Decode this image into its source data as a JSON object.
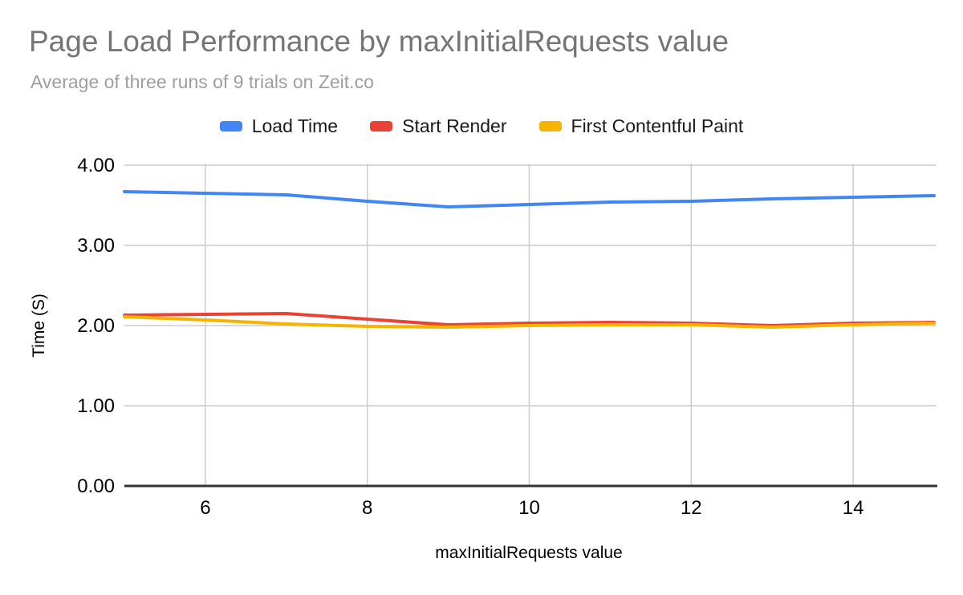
{
  "chart": {
    "title": "Page Load Performance by maxInitialRequests value",
    "subtitle": "Average of three runs of 9 trials on Zeit.co"
  },
  "chart_data": {
    "type": "line",
    "title": "Page Load Performance by maxInitialRequests value",
    "subtitle": "Average of three runs of 9 trials on Zeit.co",
    "xlabel": "maxInitialRequests value",
    "ylabel": "Time (S)",
    "xlim": [
      5,
      15
    ],
    "ylim": [
      0,
      4
    ],
    "x": [
      5,
      6,
      7,
      8,
      9,
      10,
      11,
      12,
      13,
      14,
      15
    ],
    "x_ticks": [
      "6",
      "8",
      "10",
      "12",
      "14"
    ],
    "x_tick_values": [
      6,
      8,
      10,
      12,
      14
    ],
    "y_ticks": [
      {
        "label": "0.00",
        "value": 0
      },
      {
        "label": "1.00",
        "value": 1
      },
      {
        "label": "2.00",
        "value": 2
      },
      {
        "label": "3.00",
        "value": 3
      },
      {
        "label": "4.00",
        "value": 4
      }
    ],
    "grid": "on",
    "legend_position": "top",
    "grid_color": "#cccccc",
    "axis_line_color": "#333333",
    "series": [
      {
        "name": "Load Time",
        "color": "#4285f4",
        "values": [
          3.67,
          3.65,
          3.63,
          3.55,
          3.48,
          3.51,
          3.54,
          3.55,
          3.58,
          3.6,
          3.62
        ]
      },
      {
        "name": "Start Render",
        "color": "#ea4335",
        "values": [
          2.13,
          2.14,
          2.15,
          2.08,
          2.01,
          2.03,
          2.04,
          2.03,
          2.0,
          2.03,
          2.04
        ]
      },
      {
        "name": "First Contentful Paint",
        "color": "#f5b400",
        "values": [
          2.11,
          2.07,
          2.02,
          1.99,
          1.98,
          2.0,
          2.01,
          2.01,
          1.98,
          2.01,
          2.03
        ]
      }
    ]
  }
}
